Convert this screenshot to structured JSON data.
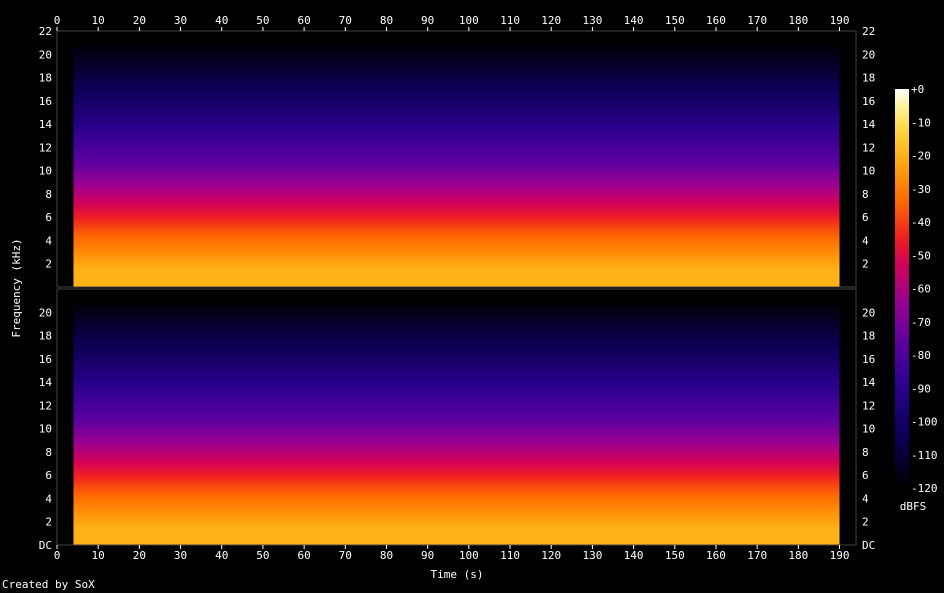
{
  "chart_data": {
    "type": "heatmap",
    "title": "",
    "xlabel": "Time (s)",
    "ylabel": "Frequency (kHz)",
    "xlim": [
      0,
      194
    ],
    "ylim_khz": [
      0,
      22
    ],
    "x_ticks": [
      "0",
      "10",
      "20",
      "30",
      "40",
      "50",
      "60",
      "70",
      "80",
      "90",
      "100",
      "110",
      "120",
      "130",
      "140",
      "150",
      "160",
      "170",
      "180",
      "190"
    ],
    "top_x_ticks": [
      "0",
      "10",
      "20",
      "30",
      "40",
      "50",
      "60",
      "70",
      "80",
      "90",
      "100",
      "110",
      "120",
      "130",
      "140",
      "150",
      "160",
      "170",
      "180",
      "190"
    ],
    "top_channel_y_ticks": [
      "22",
      "20",
      "18",
      "16",
      "14",
      "12",
      "10",
      "8",
      "6",
      "4",
      "2"
    ],
    "bottom_channel_y_ticks": [
      "20",
      "18",
      "16",
      "14",
      "12",
      "10",
      "8",
      "6",
      "4",
      "2",
      "DC"
    ],
    "channels": 2,
    "colorbar": {
      "label": "dBFS",
      "range": [
        -120,
        0
      ],
      "ticks": [
        "+0",
        "-10",
        "-20",
        "-30",
        "-40",
        "-50",
        "-60",
        "-70",
        "-80",
        "-90",
        "-100",
        "-110",
        "-120"
      ]
    },
    "grid": false,
    "signal_start_s": 4,
    "signal_end_s": 190,
    "approx_levels_dbfs": [
      {
        "freq_khz": [
          0,
          3
        ],
        "level": -20
      },
      {
        "freq_khz": [
          3,
          6
        ],
        "level": -35
      },
      {
        "freq_khz": [
          6,
          9
        ],
        "level": -55
      },
      {
        "freq_khz": [
          9,
          12
        ],
        "level": -75
      },
      {
        "freq_khz": [
          12,
          20
        ],
        "level": -100
      },
      {
        "freq_khz": [
          20,
          22
        ],
        "level": -120
      }
    ]
  },
  "footer": {
    "credit": "Created by SoX"
  },
  "colors": {
    "background": "#000000",
    "text": "#ffffff",
    "palette": [
      "#000000",
      "#0a0050",
      "#28008c",
      "#5a00a0",
      "#9a0090",
      "#d2005a",
      "#f02020",
      "#ff6a00",
      "#ffaa10",
      "#ffd840",
      "#fff4a0",
      "#ffffff"
    ]
  }
}
